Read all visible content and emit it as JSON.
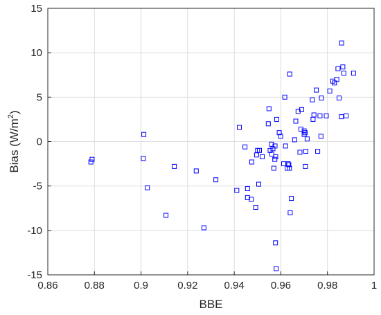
{
  "chart_data": {
    "type": "scatter",
    "xlabel": "BBE",
    "ylabel": "Bias (W/m",
    "ylabel_superscript": "2",
    "ylabel_close": ")",
    "xlim": [
      0.86,
      1
    ],
    "ylim": [
      -15,
      15
    ],
    "xticks": [
      0.86,
      0.88,
      0.9,
      0.92,
      0.94,
      0.96,
      0.98,
      1
    ],
    "xtick_labels": [
      "0.86",
      "0.88",
      "0.9",
      "0.92",
      "0.94",
      "0.96",
      "0.98",
      "1"
    ],
    "yticks": [
      -15,
      -10,
      -5,
      0,
      5,
      10,
      15
    ],
    "ytick_labels": [
      "-15",
      "-10",
      "-5",
      "0",
      "5",
      "10",
      "15"
    ],
    "grid": true,
    "marker": "square",
    "color": "#0000ff",
    "series": [
      {
        "x": [
          0.8785,
          0.879,
          0.901,
          0.9012,
          0.9027,
          0.9107,
          0.9143,
          0.9237,
          0.927,
          0.9321,
          0.9411,
          0.9422,
          0.9446,
          0.9457,
          0.9457,
          0.9473,
          0.9475,
          0.9492,
          0.9496,
          0.95,
          0.9505,
          0.9508,
          0.952,
          0.9546,
          0.9549,
          0.9554,
          0.956,
          0.9561,
          0.9566,
          0.957,
          0.9574,
          0.9575,
          0.9578,
          0.958,
          0.9582,
          0.9593,
          0.9599,
          0.9612,
          0.9617,
          0.962,
          0.9627,
          0.9631,
          0.9634,
          0.9637,
          0.9638,
          0.964,
          0.9645,
          0.9659,
          0.9664,
          0.9674,
          0.9682,
          0.9686,
          0.9689,
          0.97,
          0.97,
          0.9704,
          0.9705,
          0.9707,
          0.9713,
          0.9735,
          0.9738,
          0.9742,
          0.9752,
          0.9758,
          0.9768,
          0.9772,
          0.9774,
          0.9795,
          0.981,
          0.9823,
          0.983,
          0.984,
          0.9845,
          0.985,
          0.986,
          0.9861,
          0.9866,
          0.987,
          0.988,
          0.9912
        ],
        "y": [
          -2.3,
          -2.0,
          -1.9,
          0.8,
          -5.2,
          -8.3,
          -2.8,
          -3.3,
          -9.7,
          -4.3,
          -5.5,
          1.6,
          -0.6,
          -6.3,
          -5.3,
          -6.5,
          -2.3,
          -7.4,
          -1.5,
          -1.0,
          -4.8,
          -1.0,
          -1.7,
          2.0,
          3.7,
          -1.0,
          -0.3,
          -1.4,
          -0.8,
          -3.0,
          -2.0,
          -0.5,
          -1.7,
          -14.3,
          2.5,
          1.0,
          0.6,
          -2.5,
          5.0,
          -0.5,
          -3.0,
          -2.5,
          -2.6,
          -3.0,
          7.6,
          -8.0,
          -6.4,
          0.2,
          2.3,
          3.4,
          -1.2,
          1.4,
          3.6,
          1.2,
          0.8,
          1.0,
          -2.8,
          -1.1,
          0.3,
          4.7,
          2.5,
          3.0,
          5.8,
          -1.1,
          2.9,
          0.6,
          4.9,
          2.9,
          5.7,
          6.8,
          6.6,
          7.0,
          8.2,
          4.9,
          2.8,
          11.1,
          8.4,
          7.7,
          2.9,
          7.7
        ]
      }
    ],
    "extra_points": {
      "x": [
        0.9577
      ],
      "y": [
        -11.4
      ]
    }
  }
}
